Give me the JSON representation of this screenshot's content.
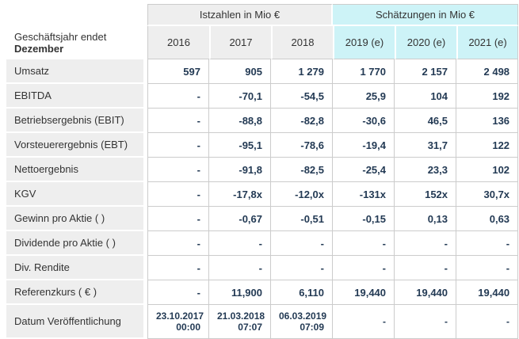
{
  "table": {
    "corner_label_line1": "Geschäftsjahr endet",
    "corner_label_line2": "Dezember",
    "groups": [
      {
        "label": "Istzahlen in Mio €",
        "span": 3
      },
      {
        "label": "Schätzungen in Mio €",
        "span": 3
      }
    ],
    "year_headers": [
      "2016",
      "2017",
      "2018",
      "2019 (e)",
      "2020 (e)",
      "2021 (e)"
    ],
    "rows": [
      {
        "label": "Umsatz",
        "values": [
          "597",
          "905",
          "1 279",
          "1 770",
          "2 157",
          "2 498"
        ]
      },
      {
        "label": "EBITDA",
        "values": [
          "-",
          "-70,1",
          "-54,5",
          "25,9",
          "104",
          "192"
        ]
      },
      {
        "label": "Betriebsergebnis (EBIT)",
        "values": [
          "-",
          "-88,8",
          "-82,8",
          "-30,6",
          "46,5",
          "136"
        ]
      },
      {
        "label": "Vorsteuerergebnis (EBT)",
        "values": [
          "-",
          "-95,1",
          "-78,6",
          "-19,4",
          "31,7",
          "122"
        ]
      },
      {
        "label": "Nettoergebnis",
        "values": [
          "-",
          "-91,8",
          "-82,5",
          "-25,4",
          "23,3",
          "102"
        ]
      },
      {
        "label": "KGV",
        "values": [
          "-",
          "-17,8x",
          "-12,0x",
          "-131x",
          "152x",
          "30,7x"
        ]
      },
      {
        "label": "Gewinn pro Aktie ( )",
        "values": [
          "-",
          "-0,67",
          "-0,51",
          "-0,15",
          "0,13",
          "0,63"
        ]
      },
      {
        "label": "Dividende pro Aktie ( )",
        "values": [
          "-",
          "-",
          "-",
          "-",
          "-",
          "-"
        ]
      },
      {
        "label": "Div. Rendite",
        "values": [
          "-",
          "-",
          "-",
          "-",
          "-",
          "-"
        ]
      },
      {
        "label": "Referenzkurs ( € )",
        "values": [
          "-",
          "11,900",
          "6,110",
          "19,440",
          "19,440",
          "19,440"
        ]
      },
      {
        "label": "Datum Veröffentlichung",
        "values": [
          "23.10.2017\n00:00",
          "21.03.2018\n07:07",
          "06.03.2019\n07:09",
          "-",
          "-",
          "-"
        ],
        "small": true
      }
    ],
    "colors": {
      "actuals_header_bg": "#eeeeee",
      "estimates_header_bg": "#cdf3f7",
      "border": "#cccccc",
      "label_text": "#333333",
      "value_text": "#233a54"
    }
  }
}
